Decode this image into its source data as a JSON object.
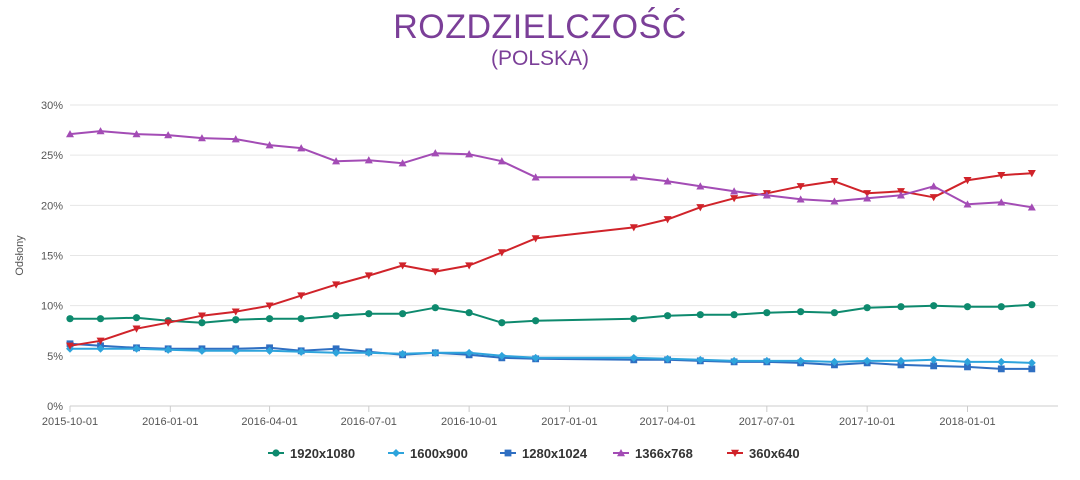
{
  "title": "ROZDZIELCZOŚĆ",
  "subtitle": "(POLSKA)",
  "chart_data": {
    "type": "line",
    "title": "ROZDZIELCZOŚĆ",
    "subtitle": "(POLSKA)",
    "xlabel": "",
    "ylabel": "Odsłony",
    "x_axis_type": "date",
    "x_range": [
      "2015-10-01",
      "2018-03-25"
    ],
    "x_ticks": [
      "2015-10-01",
      "2016-01-01",
      "2016-04-01",
      "2016-07-01",
      "2016-10-01",
      "2017-01-01",
      "2017-04-01",
      "2017-07-01",
      "2017-10-01",
      "2018-01-01"
    ],
    "ylim": [
      0,
      30
    ],
    "y_ticks": [
      0,
      5,
      10,
      15,
      20,
      25,
      30
    ],
    "y_tick_labels": [
      "0%",
      "5%",
      "10%",
      "15%",
      "20%",
      "25%",
      "30%"
    ],
    "grid": "horizontal",
    "legend_position": "bottom-center",
    "x": [
      "2015-10-01",
      "2015-10-29",
      "2015-12-01",
      "2015-12-30",
      "2016-01-30",
      "2016-03-01",
      "2016-04-01",
      "2016-04-30",
      "2016-06-01",
      "2016-07-01",
      "2016-08-01",
      "2016-08-31",
      "2016-10-01",
      "2016-10-31",
      "2016-12-01",
      "2017-03-01",
      "2017-04-01",
      "2017-05-01",
      "2017-06-01",
      "2017-07-01",
      "2017-08-01",
      "2017-09-01",
      "2017-10-01",
      "2017-11-01",
      "2017-12-01",
      "2018-01-01",
      "2018-02-01",
      "2018-03-01"
    ],
    "series": [
      {
        "name": "1366x768",
        "color": "#a34cb5",
        "marker": "triangle-up",
        "values": [
          27.1,
          27.4,
          27.1,
          27.0,
          26.7,
          26.6,
          26.0,
          25.7,
          24.4,
          24.5,
          24.2,
          25.2,
          25.1,
          24.4,
          22.8,
          22.8,
          22.4,
          21.9,
          21.4,
          21.0,
          20.6,
          20.4,
          20.7,
          21.0,
          21.9,
          20.1,
          20.3,
          19.8
        ]
      },
      {
        "name": "360x640",
        "color": "#d0232a",
        "marker": "triangle-down",
        "values": [
          6.0,
          6.5,
          7.7,
          8.3,
          9.0,
          9.4,
          10.0,
          11.0,
          12.1,
          13.0,
          14.0,
          13.4,
          14.0,
          15.3,
          16.7,
          17.8,
          18.6,
          19.8,
          20.7,
          21.2,
          21.9,
          22.4,
          21.2,
          21.4,
          20.8,
          22.5,
          23.0,
          23.2
        ]
      },
      {
        "name": "1920x1080",
        "color": "#0e8a6e",
        "marker": "circle",
        "values": [
          8.7,
          8.7,
          8.8,
          8.5,
          8.3,
          8.6,
          8.7,
          8.7,
          9.0,
          9.2,
          9.2,
          9.8,
          9.3,
          8.3,
          8.5,
          8.7,
          9.0,
          9.1,
          9.1,
          9.3,
          9.4,
          9.3,
          9.8,
          9.9,
          10.0,
          9.9,
          9.9,
          10.1
        ]
      },
      {
        "name": "1600x900",
        "color": "#2ea4dc",
        "marker": "diamond",
        "values": [
          5.7,
          5.7,
          5.7,
          5.6,
          5.5,
          5.5,
          5.5,
          5.4,
          5.3,
          5.3,
          5.2,
          5.3,
          5.3,
          5.0,
          4.8,
          4.8,
          4.7,
          4.6,
          4.5,
          4.5,
          4.5,
          4.4,
          4.5,
          4.5,
          4.6,
          4.4,
          4.4,
          4.3
        ]
      },
      {
        "name": "1280x1024",
        "color": "#2f6fc2",
        "marker": "square",
        "values": [
          6.2,
          6.0,
          5.8,
          5.7,
          5.7,
          5.7,
          5.8,
          5.5,
          5.7,
          5.4,
          5.1,
          5.3,
          5.1,
          4.8,
          4.7,
          4.6,
          4.6,
          4.5,
          4.4,
          4.4,
          4.3,
          4.1,
          4.3,
          4.1,
          4.0,
          3.9,
          3.7,
          3.7
        ]
      }
    ],
    "legend_order": [
      "1920x1080",
      "1600x900",
      "1280x1024",
      "1366x768",
      "360x640"
    ]
  }
}
